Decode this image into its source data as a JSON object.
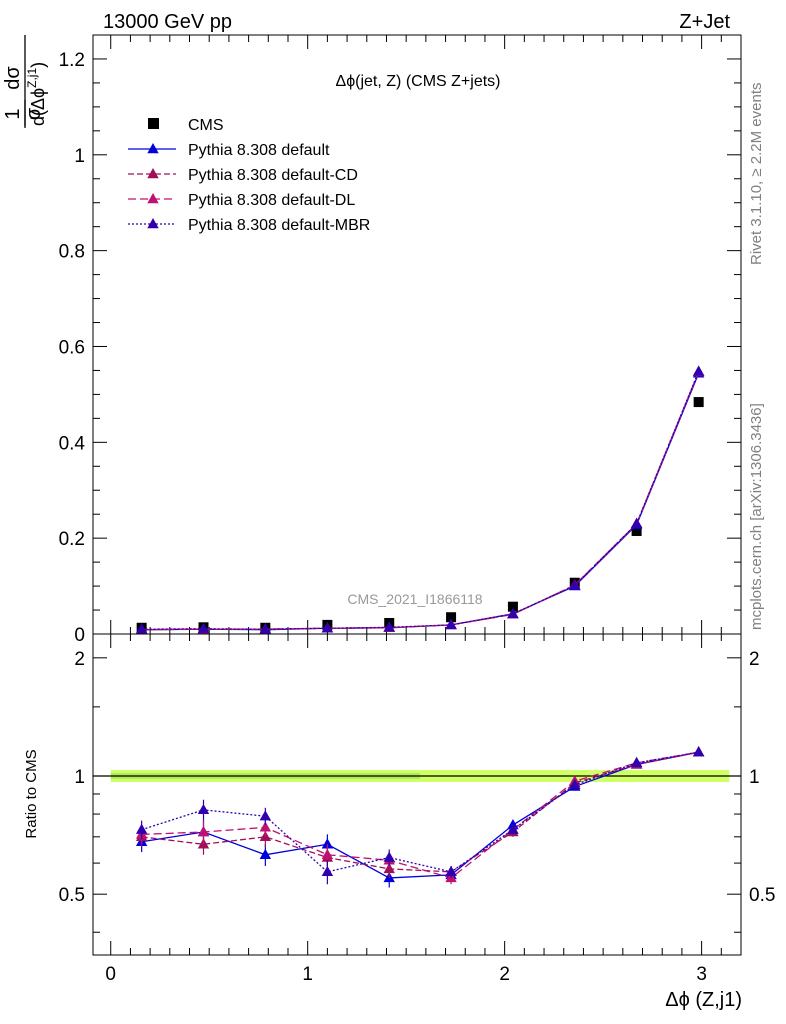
{
  "header": {
    "left": "13000 GeV pp",
    "right": "Z+Jet"
  },
  "side_labels": {
    "top": "Rivet 3.1.10, ≥ 2.2M events",
    "bottom": "mcplots.cern.ch [arXiv:1306.3436]"
  },
  "colors": {
    "cms": "#000000",
    "default": "#0000dd",
    "cd": "#a0105a",
    "dl": "#c01070",
    "mbr": "#3000b0",
    "band": "#ccff55"
  },
  "chart_data": [
    {
      "type": "scatter",
      "title": "Δϕ(jet, Z) (CMS Z+jets)",
      "ylabel_num": "dσ",
      "ylabel_prefix_num": "1",
      "ylabel_prefix_den": "σ",
      "ylabel_den": "d(Δϕ",
      "ylabel_den_sup": "Z,j1",
      "ylabel_den_close": ")",
      "watermark": "CMS_2021_I1866118",
      "ylim": [
        0,
        1.25
      ],
      "xlim": [
        -0.09,
        3.2
      ],
      "yticks": [
        "0",
        "0.2",
        "0.4",
        "0.6",
        "0.8",
        "1",
        "1.2"
      ],
      "ytick_values": [
        0,
        0.2,
        0.4,
        0.6,
        0.8,
        1.0,
        1.2
      ],
      "legend_position": "top-left",
      "x": [
        0.157,
        0.471,
        0.785,
        1.1,
        1.414,
        1.728,
        2.042,
        2.356,
        2.67,
        2.985
      ],
      "series": [
        {
          "name": "CMS",
          "key": "cms",
          "values": [
            0.013,
            0.014,
            0.013,
            0.019,
            0.023,
            0.035,
            0.057,
            0.107,
            0.215,
            0.484
          ]
        },
        {
          "name": "Pythia 8.308 default",
          "key": "default",
          "values": [
            0.009,
            0.01,
            0.009,
            0.012,
            0.013,
            0.019,
            0.042,
            0.1,
            0.228,
            0.544
          ]
        },
        {
          "name": "Pythia 8.308 default-CD",
          "key": "cd",
          "values": [
            0.009,
            0.01,
            0.01,
            0.012,
            0.013,
            0.019,
            0.041,
            0.102,
            0.23,
            0.547
          ]
        },
        {
          "name": "Pythia 8.308 default-DL",
          "key": "dl",
          "values": [
            0.009,
            0.01,
            0.01,
            0.012,
            0.013,
            0.019,
            0.041,
            0.102,
            0.23,
            0.547
          ]
        },
        {
          "name": "Pythia 8.308 default-MBR",
          "key": "mbr",
          "values": [
            0.01,
            0.011,
            0.01,
            0.012,
            0.014,
            0.019,
            0.042,
            0.101,
            0.23,
            0.548
          ]
        }
      ]
    },
    {
      "type": "line",
      "ylabel": "Ratio to CMS",
      "xlabel": "Δϕ (Z,j1)",
      "ylim": [
        0.35,
        2.3
      ],
      "xlim": [
        -0.09,
        3.2
      ],
      "yticks": [
        "0.5",
        "1",
        "2"
      ],
      "ytick_values": [
        0.5,
        1,
        2
      ],
      "xticks": [
        "0",
        "1",
        "2",
        "3"
      ],
      "xtick_values": [
        0,
        1,
        2,
        3
      ],
      "x": [
        0.157,
        0.471,
        0.785,
        1.1,
        1.414,
        1.728,
        2.042,
        2.356,
        2.67,
        2.985
      ],
      "series": [
        {
          "name": "Pythia 8.308 default",
          "key": "default",
          "values": [
            0.68,
            0.72,
            0.63,
            0.67,
            0.55,
            0.56,
            0.75,
            0.94,
            1.07,
            1.15
          ],
          "errors": [
            0.04,
            0.05,
            0.04,
            0.04,
            0.03,
            0.02,
            0.02,
            0.01,
            0.01,
            0.01
          ]
        },
        {
          "name": "Pythia 8.308 default-CD",
          "key": "cd",
          "values": [
            0.7,
            0.67,
            0.7,
            0.62,
            0.58,
            0.57,
            0.72,
            0.96,
            1.07,
            1.15
          ],
          "errors": [
            0.04,
            0.04,
            0.04,
            0.04,
            0.03,
            0.02,
            0.02,
            0.01,
            0.01,
            0.01
          ]
        },
        {
          "name": "Pythia 8.308 default-DL",
          "key": "dl",
          "values": [
            0.71,
            0.72,
            0.74,
            0.63,
            0.61,
            0.55,
            0.73,
            0.97,
            1.08,
            1.15
          ],
          "errors": [
            0.04,
            0.05,
            0.04,
            0.04,
            0.03,
            0.02,
            0.02,
            0.01,
            0.01,
            0.01
          ]
        },
        {
          "name": "Pythia 8.308 default-MBR",
          "key": "mbr",
          "values": [
            0.73,
            0.82,
            0.79,
            0.57,
            0.62,
            0.57,
            0.73,
            0.95,
            1.08,
            1.15
          ],
          "errors": [
            0.04,
            0.05,
            0.04,
            0.04,
            0.03,
            0.02,
            0.02,
            0.01,
            0.01,
            0.01
          ]
        }
      ]
    }
  ]
}
